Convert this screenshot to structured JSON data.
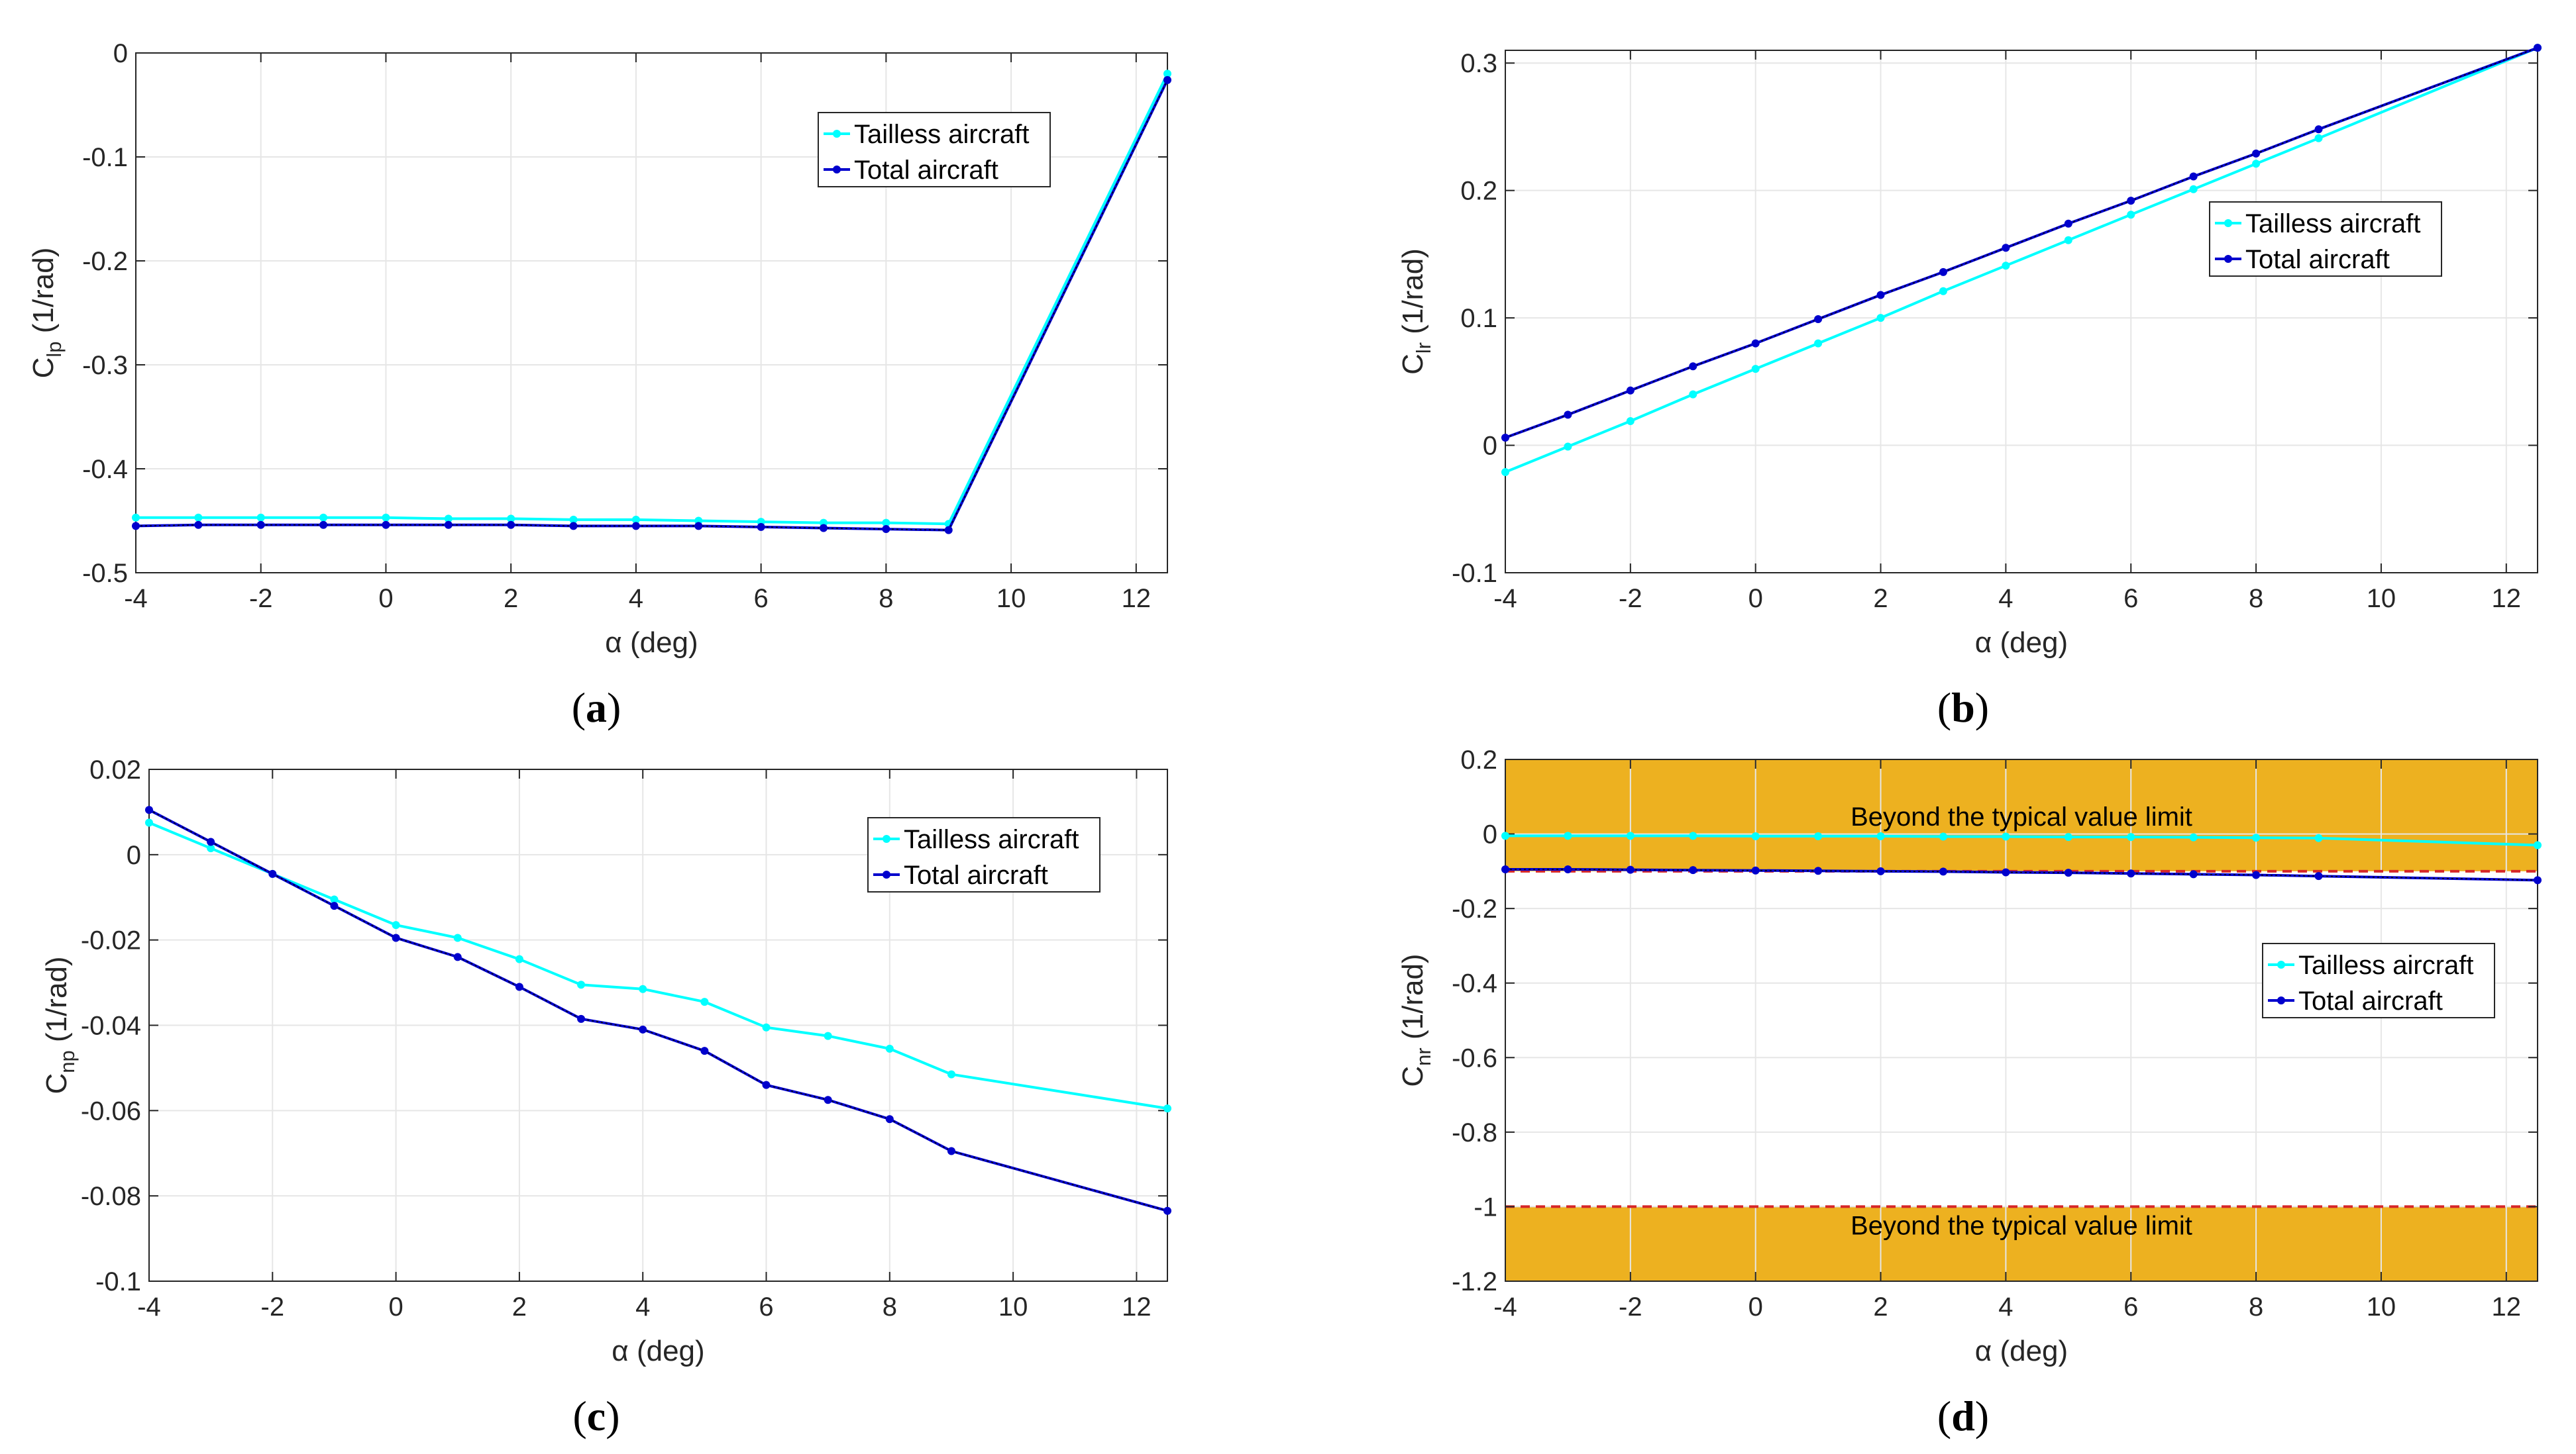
{
  "chart_data": [
    {
      "id": "a",
      "type": "line",
      "caption_letter": "a",
      "xlabel": "α (deg)",
      "ylabel_main": "C",
      "ylabel_sub": "lp",
      "ylabel_unit": " (1/rad)",
      "xlim": [
        -4,
        12.5
      ],
      "ylim": [
        -0.5,
        0
      ],
      "xticks": [
        -4,
        -2,
        0,
        2,
        4,
        6,
        8,
        10,
        12
      ],
      "yticks": [
        0,
        -0.1,
        -0.2,
        -0.3,
        -0.4,
        -0.5
      ],
      "ytick_labels": [
        "0",
        "-0.1",
        "-0.2",
        "-0.3",
        "-0.4",
        "-0.5"
      ],
      "legend_position": "top-right",
      "series": [
        {
          "name": "Tailless aircraft",
          "color": "#00ffff",
          "x": [
            -4,
            -3,
            -2,
            -1,
            0,
            1,
            2,
            3,
            4,
            5,
            6,
            7,
            8,
            9,
            12.5
          ],
          "y": [
            -0.447,
            -0.447,
            -0.447,
            -0.447,
            -0.447,
            -0.448,
            -0.448,
            -0.449,
            -0.449,
            -0.45,
            -0.451,
            -0.452,
            -0.452,
            -0.453,
            -0.02
          ]
        },
        {
          "name": "Total aircraft",
          "color": "#0000cd",
          "x": [
            -4,
            -3,
            -2,
            -1,
            0,
            1,
            2,
            3,
            4,
            5,
            6,
            7,
            8,
            9,
            12.5
          ],
          "y": [
            -0.455,
            -0.454,
            -0.454,
            -0.454,
            -0.454,
            -0.454,
            -0.454,
            -0.455,
            -0.455,
            -0.455,
            -0.456,
            -0.457,
            -0.458,
            -0.459,
            -0.026
          ]
        }
      ]
    },
    {
      "id": "b",
      "type": "line",
      "caption_letter": "b",
      "xlabel": "α (deg)",
      "ylabel_main": "C",
      "ylabel_sub": "lr",
      "ylabel_unit": " (1/rad)",
      "xlim": [
        -4,
        12.5
      ],
      "ylim": [
        -0.1,
        0.31
      ],
      "xticks": [
        -4,
        -2,
        0,
        2,
        4,
        6,
        8,
        10,
        12
      ],
      "yticks": [
        0.3,
        0.2,
        0.1,
        0,
        -0.1
      ],
      "ytick_labels": [
        "0.3",
        "0.2",
        "0.1",
        "0",
        "-0.1"
      ],
      "legend_position": "middle-right",
      "series": [
        {
          "name": "Tailless aircraft",
          "color": "#00ffff",
          "x": [
            -4,
            -3,
            -2,
            -1,
            0,
            1,
            2,
            3,
            4,
            5,
            6,
            7,
            8,
            9,
            12.5
          ],
          "y": [
            -0.021,
            -0.001,
            0.019,
            0.04,
            0.06,
            0.08,
            0.1,
            0.121,
            0.141,
            0.161,
            0.181,
            0.201,
            0.221,
            0.241,
            0.312
          ]
        },
        {
          "name": "Total aircraft",
          "color": "#0000cd",
          "x": [
            -4,
            -3,
            -2,
            -1,
            0,
            1,
            2,
            3,
            4,
            5,
            6,
            7,
            8,
            9,
            12.5
          ],
          "y": [
            0.006,
            0.024,
            0.043,
            0.062,
            0.08,
            0.099,
            0.118,
            0.136,
            0.155,
            0.174,
            0.192,
            0.211,
            0.229,
            0.248,
            0.312
          ]
        }
      ]
    },
    {
      "id": "c",
      "type": "line",
      "caption_letter": "c",
      "xlabel": "α (deg)",
      "ylabel_main": "C",
      "ylabel_sub": "np",
      "ylabel_unit": " (1/rad)",
      "xlim": [
        -4,
        12.5
      ],
      "ylim": [
        -0.1,
        0.02
      ],
      "xticks": [
        -4,
        -2,
        0,
        2,
        4,
        6,
        8,
        10,
        12
      ],
      "yticks": [
        0.02,
        0,
        -0.02,
        -0.04,
        -0.06,
        -0.08,
        -0.1
      ],
      "ytick_labels": [
        "0.02",
        "0",
        "-0.02",
        "-0.04",
        "-0.06",
        "-0.08",
        "-0.1"
      ],
      "legend_position": "top-right",
      "series": [
        {
          "name": "Tailless aircraft",
          "color": "#00ffff",
          "x": [
            -4,
            -3,
            -2,
            -1,
            0,
            1,
            2,
            3,
            4,
            5,
            6,
            7,
            8,
            9,
            12.5
          ],
          "y": [
            0.0075,
            0.0015,
            -0.0045,
            -0.0105,
            -0.0165,
            -0.0195,
            -0.0245,
            -0.0305,
            -0.0315,
            -0.0345,
            -0.0405,
            -0.0425,
            -0.0455,
            -0.0515,
            -0.0595
          ]
        },
        {
          "name": "Total aircraft",
          "color": "#0000cd",
          "x": [
            -4,
            -3,
            -2,
            -1,
            0,
            1,
            2,
            3,
            4,
            5,
            6,
            7,
            8,
            9,
            12.5
          ],
          "y": [
            0.0105,
            0.003,
            -0.0045,
            -0.012,
            -0.0195,
            -0.024,
            -0.031,
            -0.0385,
            -0.041,
            -0.046,
            -0.054,
            -0.0575,
            -0.062,
            -0.0695,
            -0.0835
          ]
        }
      ]
    },
    {
      "id": "d",
      "type": "line",
      "caption_letter": "d",
      "xlabel": "α (deg)",
      "ylabel_main": "C",
      "ylabel_sub": "nr",
      "ylabel_unit": " (1/rad)",
      "xlim": [
        -4,
        12.5
      ],
      "ylim": [
        -1.2,
        0.2
      ],
      "xticks": [
        -4,
        -2,
        0,
        2,
        4,
        6,
        8,
        10,
        12
      ],
      "yticks": [
        0.2,
        0,
        -0.2,
        -0.4,
        -0.6,
        -0.8,
        -1,
        -1.2
      ],
      "ytick_labels": [
        "0.2",
        "0",
        "-0.2",
        "-0.4",
        "-0.6",
        "-0.8",
        "-1",
        "-1.2"
      ],
      "legend_position": "middle-right",
      "bands": [
        {
          "from": -0.1,
          "to": 0.2,
          "label": "Beyond the typical value limit",
          "color": "#edb120",
          "limit_line": -0.1
        },
        {
          "from": -1.2,
          "to": -1.0,
          "label": "Beyond the typical value limit",
          "color": "#edb120",
          "limit_line": -1.0
        }
      ],
      "limit_line_color": "#d62728",
      "series": [
        {
          "name": "Tailless aircraft",
          "color": "#00ffff",
          "x": [
            -4,
            -3,
            -2,
            -1,
            0,
            1,
            2,
            3,
            4,
            5,
            6,
            7,
            8,
            9,
            12.5
          ],
          "y": [
            -0.005,
            -0.005,
            -0.005,
            -0.005,
            -0.006,
            -0.006,
            -0.006,
            -0.007,
            -0.007,
            -0.008,
            -0.008,
            -0.009,
            -0.01,
            -0.011,
            -0.03
          ]
        },
        {
          "name": "Total aircraft",
          "color": "#0000cd",
          "x": [
            -4,
            -3,
            -2,
            -1,
            0,
            1,
            2,
            3,
            4,
            5,
            6,
            7,
            8,
            9,
            12.5
          ],
          "y": [
            -0.095,
            -0.095,
            -0.096,
            -0.097,
            -0.098,
            -0.099,
            -0.1,
            -0.101,
            -0.103,
            -0.104,
            -0.106,
            -0.108,
            -0.11,
            -0.113,
            -0.124
          ]
        }
      ]
    }
  ]
}
